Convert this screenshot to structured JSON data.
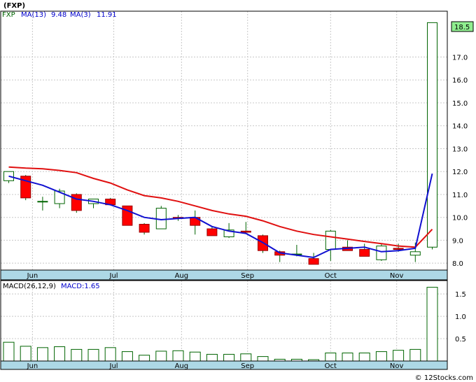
{
  "title": "(FXP)",
  "legend": {
    "ticker": "FXP",
    "ma13_label": "MA(13)",
    "ma13_value": "9.48",
    "ma3_label": "MA(3)",
    "ma3_value": "11.91",
    "macd_label": "MACD(26,12,9)",
    "macd_value_label": "MACD:1.65"
  },
  "last_price_label": "18.5",
  "watermark": "© 12Stocks.com",
  "colors": {
    "ma13": "#e01010",
    "ma3": "#1010d0",
    "down_candle": "#ff0000",
    "up_candle": "#ffffff",
    "candle_outline": "#006400",
    "macd_bar": "#006400",
    "axis_band": "#add8e6",
    "grid": "#c8c8c8",
    "ticker_text": "#006400",
    "legend_text": "#0000cc"
  },
  "chart_data": [
    {
      "type": "candlestick",
      "title": "(FXP)",
      "ylim": [
        7.7,
        19.0
      ],
      "yticks": [
        "8.0",
        "9.0",
        "10.0",
        "11.0",
        "12.0",
        "13.0",
        "14.0",
        "15.0",
        "16.0",
        "17.0"
      ],
      "yticks_values": [
        8,
        9,
        10,
        11,
        12,
        13,
        14,
        15,
        16,
        17
      ],
      "month_labels": [
        "Jun",
        "Jul",
        "Aug",
        "Sep",
        "Oct",
        "Nov"
      ],
      "month_positions": [
        1.4,
        6.2,
        10.2,
        14.1,
        19.0,
        22.9
      ],
      "x": [
        0,
        1,
        2,
        3,
        4,
        5,
        6,
        7,
        8,
        9,
        10,
        11,
        12,
        13,
        14,
        15,
        16,
        17,
        18,
        19,
        20,
        21,
        22,
        23,
        24,
        25
      ],
      "open": [
        11.6,
        11.8,
        10.7,
        10.6,
        11.0,
        10.6,
        10.8,
        10.5,
        9.7,
        9.5,
        10.0,
        10.0,
        9.5,
        9.15,
        9.4,
        9.2,
        8.5,
        8.4,
        8.2,
        8.6,
        8.7,
        8.6,
        8.15,
        8.65,
        8.35,
        8.7
      ],
      "high": [
        12.0,
        11.85,
        10.9,
        11.25,
        11.05,
        10.8,
        10.85,
        10.5,
        9.75,
        10.5,
        10.1,
        10.3,
        9.6,
        9.75,
        9.8,
        9.25,
        8.55,
        8.8,
        8.45,
        9.45,
        9.0,
        8.85,
        8.85,
        8.85,
        8.9,
        18.5
      ],
      "low": [
        11.5,
        10.75,
        10.3,
        10.4,
        10.2,
        10.4,
        10.55,
        9.65,
        9.25,
        9.5,
        9.85,
        9.25,
        9.2,
        9.1,
        9.3,
        8.45,
        8.05,
        8.3,
        7.95,
        8.1,
        8.55,
        8.3,
        8.1,
        8.5,
        8.05,
        8.6
      ],
      "close": [
        12.0,
        10.85,
        10.7,
        11.15,
        10.3,
        10.8,
        10.55,
        9.65,
        9.35,
        10.4,
        9.95,
        9.65,
        9.2,
        9.45,
        9.35,
        8.55,
        8.35,
        8.4,
        7.95,
        9.4,
        8.55,
        8.3,
        8.75,
        8.6,
        8.5,
        18.5
      ],
      "ma13": [
        12.2,
        12.15,
        12.12,
        12.05,
        11.95,
        11.7,
        11.5,
        11.2,
        10.95,
        10.85,
        10.7,
        10.5,
        10.3,
        10.15,
        10.05,
        9.85,
        9.6,
        9.4,
        9.25,
        9.15,
        9.05,
        8.95,
        8.85,
        8.75,
        8.7,
        9.48
      ],
      "ma3": [
        11.8,
        11.6,
        11.4,
        11.1,
        10.8,
        10.7,
        10.55,
        10.3,
        10.0,
        9.9,
        9.95,
        10.0,
        9.6,
        9.4,
        9.3,
        8.9,
        8.45,
        8.35,
        8.25,
        8.6,
        8.65,
        8.7,
        8.5,
        8.55,
        8.65,
        11.91
      ]
    },
    {
      "type": "bar",
      "title": "MACD(26,12,9)",
      "ylim": [
        0,
        1.8
      ],
      "yticks": [
        "0.5",
        "1.0",
        "1.5"
      ],
      "yticks_values": [
        0.5,
        1.0,
        1.5
      ],
      "month_labels": [
        "Jun",
        "Jul",
        "Aug",
        "Sep",
        "Oct",
        "Nov"
      ],
      "x": [
        0,
        1,
        2,
        3,
        4,
        5,
        6,
        7,
        8,
        9,
        10,
        11,
        12,
        13,
        14,
        15,
        16,
        17,
        18,
        19,
        20,
        21,
        22,
        23,
        24,
        25
      ],
      "values": [
        0.42,
        0.33,
        0.3,
        0.32,
        0.26,
        0.26,
        0.3,
        0.21,
        0.13,
        0.22,
        0.23,
        0.2,
        0.15,
        0.15,
        0.16,
        0.1,
        0.04,
        0.04,
        0.03,
        0.18,
        0.18,
        0.18,
        0.21,
        0.24,
        0.26,
        1.65
      ]
    }
  ]
}
